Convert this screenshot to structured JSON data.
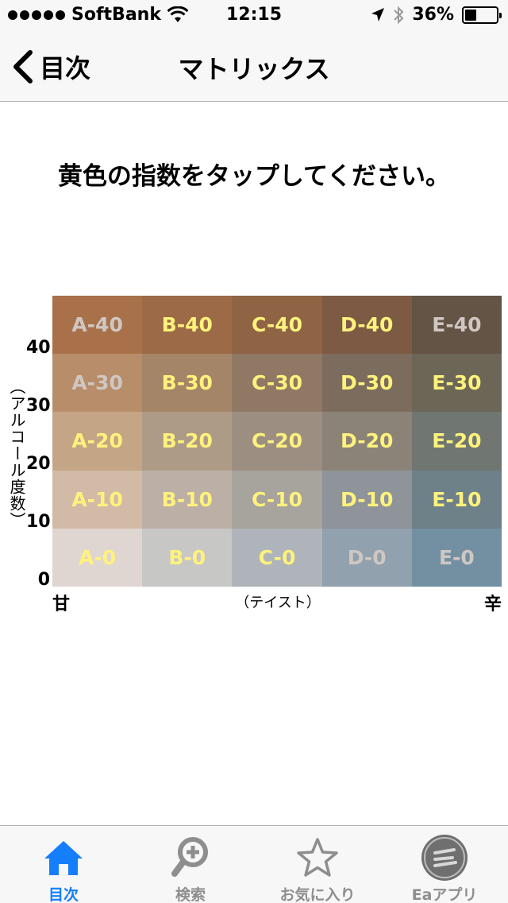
{
  "status_bar": {
    "carrier": "SoftBank",
    "time": "12:15",
    "battery": "36%",
    "battery_level": 0.36,
    "icons": [
      "signal-dots-icon",
      "wifi-icon",
      "location-arrow-icon",
      "bluetooth-icon",
      "battery-icon"
    ]
  },
  "nav": {
    "back_label": "目次",
    "title": "マトリックス"
  },
  "instruction": "黄色の指数をタップしてください。",
  "matrix": {
    "y_axis_title": "（アルコール度数）",
    "y_ticks": [
      "40",
      "30",
      "20",
      "10",
      "0"
    ],
    "x_left": "甘",
    "x_title": "（テイスト）",
    "x_right": "辛",
    "rows": [
      [
        {
          "label": "A-40",
          "bg": "#a8714a",
          "text_color": "#cfc7c2"
        },
        {
          "label": "B-40",
          "bg": "#9c6a47",
          "text_color": "#fff27c"
        },
        {
          "label": "C-40",
          "bg": "#8e6445",
          "text_color": "#fff27c"
        },
        {
          "label": "D-40",
          "bg": "#7d5a43",
          "text_color": "#fff27c"
        },
        {
          "label": "E-40",
          "bg": "#645445",
          "text_color": "#cfc7c2"
        }
      ],
      [
        {
          "label": "A-30",
          "bg": "#b88d69",
          "text_color": "#cfc7c2"
        },
        {
          "label": "B-30",
          "bg": "#a58567",
          "text_color": "#fff27c"
        },
        {
          "label": "C-30",
          "bg": "#8f7965",
          "text_color": "#fff27c"
        },
        {
          "label": "D-30",
          "bg": "#7c6c5d",
          "text_color": "#fff27c"
        },
        {
          "label": "E-30",
          "bg": "#6c6657",
          "text_color": "#fff27c"
        }
      ],
      [
        {
          "label": "A-20",
          "bg": "#c4a585",
          "text_color": "#fff27c"
        },
        {
          "label": "B-20",
          "bg": "#ae9b87",
          "text_color": "#fff27c"
        },
        {
          "label": "C-20",
          "bg": "#9c8f82",
          "text_color": "#fff27c"
        },
        {
          "label": "D-20",
          "bg": "#8b8378",
          "text_color": "#fff27c"
        },
        {
          "label": "E-20",
          "bg": "#707671",
          "text_color": "#fff27c"
        }
      ],
      [
        {
          "label": "A-10",
          "bg": "#d2bba6",
          "text_color": "#fff27c"
        },
        {
          "label": "B-10",
          "bg": "#bcb0a6",
          "text_color": "#fff27c"
        },
        {
          "label": "C-10",
          "bg": "#a7a39d",
          "text_color": "#fff27c"
        },
        {
          "label": "D-10",
          "bg": "#8e949a",
          "text_color": "#fff27c"
        },
        {
          "label": "E-10",
          "bg": "#6e8088",
          "text_color": "#fff27c"
        }
      ],
      [
        {
          "label": "A-0",
          "bg": "#dfd6d1",
          "text_color": "#fff27c"
        },
        {
          "label": "B-0",
          "bg": "#c7c7c6",
          "text_color": "#fff27c"
        },
        {
          "label": "C-0",
          "bg": "#aeb4ba",
          "text_color": "#fff27c"
        },
        {
          "label": "D-0",
          "bg": "#91a1ad",
          "text_color": "#cfc7c2"
        },
        {
          "label": "E-0",
          "bg": "#7390a2",
          "text_color": "#cfc7c2"
        }
      ]
    ]
  },
  "tabs": [
    {
      "label": "目次",
      "icon": "home-icon",
      "active": true
    },
    {
      "label": "検索",
      "icon": "search-plus-icon",
      "active": false
    },
    {
      "label": "お気に入り",
      "icon": "star-icon",
      "active": false
    },
    {
      "label": "Eaアプリ",
      "icon": "ea-app-icon",
      "active": false
    }
  ],
  "colors": {
    "accent": "#147efb",
    "inactive": "#8e8e8e",
    "bar_bg": "#f7f7f7"
  }
}
